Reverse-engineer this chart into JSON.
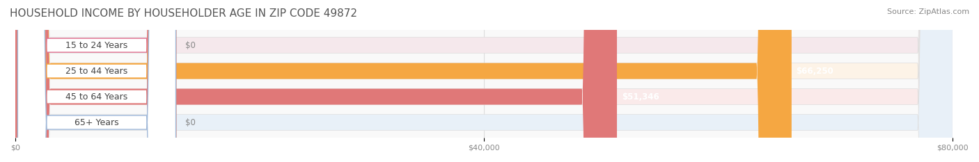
{
  "title": "HOUSEHOLD INCOME BY HOUSEHOLDER AGE IN ZIP CODE 49872",
  "source": "Source: ZipAtlas.com",
  "categories": [
    "15 to 24 Years",
    "25 to 44 Years",
    "45 to 64 Years",
    "65+ Years"
  ],
  "values": [
    0,
    66250,
    51346,
    0
  ],
  "bar_colors": [
    "#f48aaa",
    "#f5a742",
    "#e07878",
    "#a8c4e0"
  ],
  "bg_colors": [
    "#f5e8ec",
    "#fdf3e7",
    "#faeaea",
    "#e8f0f8"
  ],
  "label_colors": [
    "#e07090",
    "#f5a742",
    "#e07878",
    "#a0b8d8"
  ],
  "value_labels": [
    "$0",
    "$66,250",
    "$51,346",
    "$0"
  ],
  "xlim": [
    0,
    80000
  ],
  "xticks": [
    0,
    40000,
    80000
  ],
  "xticklabels": [
    "$0",
    "$40,000",
    "$80,000"
  ],
  "title_fontsize": 11,
  "source_fontsize": 8,
  "label_fontsize": 9,
  "value_fontsize": 8.5
}
